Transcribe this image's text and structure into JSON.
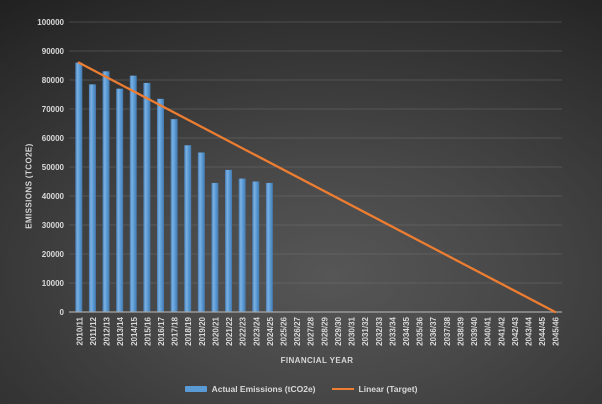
{
  "chart_data": {
    "type": "bar",
    "title": "",
    "xlabel": "FINANCIAL YEAR",
    "ylabel": "EMISSIONS (tCO2e)",
    "categories": [
      "2010/11",
      "2011/12",
      "2012/13",
      "2013/14",
      "2014/15",
      "2015/16",
      "2016/17",
      "2017/18",
      "2018/19",
      "2019/20",
      "2020/21",
      "2021/22",
      "2022/23",
      "2023/24",
      "2024/25",
      "2025/26",
      "2026/27",
      "2027/28",
      "2028/29",
      "2029/30",
      "2030/31",
      "2031/32",
      "2032/33",
      "2033/34",
      "2034/35",
      "2035/36",
      "2036/37",
      "2037/38",
      "2038/39",
      "2039/40",
      "2040/41",
      "2041/42",
      "2042/43",
      "2043/44",
      "2044/45",
      "2045/46"
    ],
    "series": [
      {
        "name": "Actual Emissions (tCO2e)",
        "type": "bar",
        "color": "#5B9BD5",
        "values": [
          86000,
          78500,
          83000,
          77000,
          81500,
          79000,
          73500,
          66500,
          57500,
          55000,
          44500,
          49000,
          46000,
          45000,
          44500,
          null,
          null,
          null,
          null,
          null,
          null,
          null,
          null,
          null,
          null,
          null,
          null,
          null,
          null,
          null,
          null,
          null,
          null,
          null,
          null,
          null
        ]
      },
      {
        "name": "Linear (Target)",
        "type": "line",
        "color": "#ED7D31",
        "points": [
          {
            "x": "2010/11",
            "y": 86000
          },
          {
            "x": "2045/46",
            "y": 0
          }
        ]
      }
    ],
    "ylim": [
      0,
      100000
    ],
    "yticks": [
      0,
      10000,
      20000,
      30000,
      40000,
      50000,
      60000,
      70000,
      80000,
      90000,
      100000
    ],
    "grid": true,
    "legend_position": "bottom"
  },
  "colors": {
    "bar": "#5B9BD5",
    "bar_light": "#7BB1E3",
    "bar_dark": "#4479AF",
    "line": "#ED7D31",
    "grid": "#777777",
    "axis": "#a6a6a6",
    "tick_text": "#d9d9d9",
    "title_text": "#d6d6d6"
  }
}
